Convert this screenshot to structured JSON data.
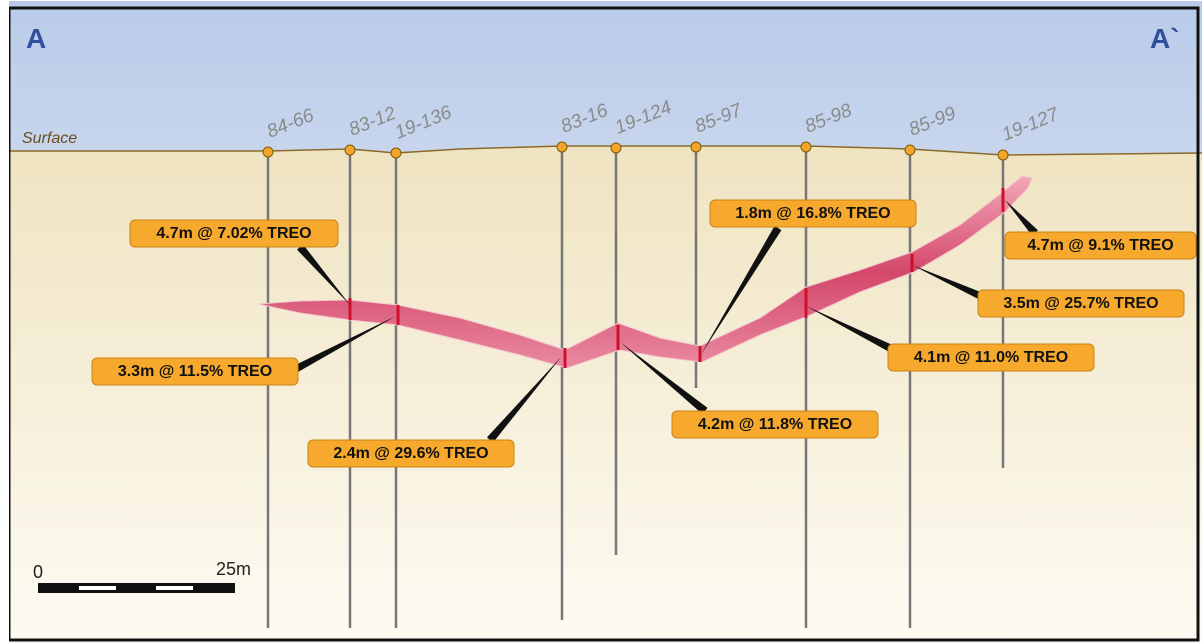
{
  "section": {
    "start_label": "A",
    "end_label": "A`",
    "surface_label": "Surface"
  },
  "drill_holes": [
    {
      "id": "84-66"
    },
    {
      "id": "83-12"
    },
    {
      "id": "19-136"
    },
    {
      "id": "83-16"
    },
    {
      "id": "19-124"
    },
    {
      "id": "85-97"
    },
    {
      "id": "85-98"
    },
    {
      "id": "85-99"
    },
    {
      "id": "19-127"
    }
  ],
  "intercepts": [
    {
      "label": "4.7m @ 7.02% TREO"
    },
    {
      "label": "3.3m @ 11.5% TREO"
    },
    {
      "label": "2.4m @ 29.6% TREO"
    },
    {
      "label": "4.2m @ 11.8% TREO"
    },
    {
      "label": "1.8m @ 16.8% TREO"
    },
    {
      "label": "4.7m @ 9.1% TREO"
    },
    {
      "label": "3.5m @ 25.7% TREO"
    },
    {
      "label": "4.1m @ 11.0% TREO"
    }
  ],
  "scale_bar": {
    "start_label": "0",
    "end_label": "25m"
  }
}
